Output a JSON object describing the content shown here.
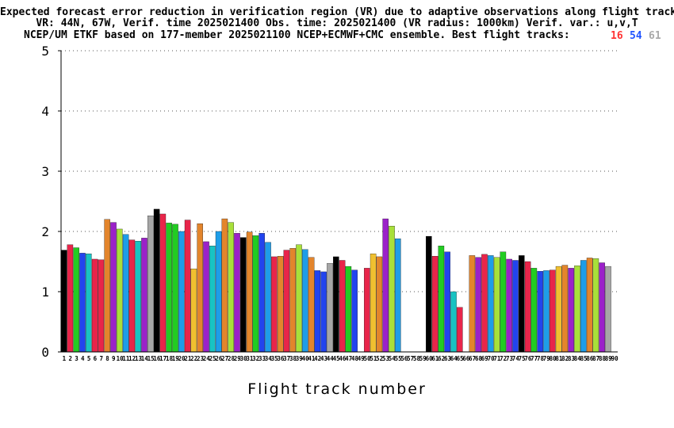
{
  "chart_data": {
    "type": "bar",
    "title_lines": [
      "Expected forecast error reduction in verification region (VR) due to adaptive observations along flight tracks.",
      "VR: 44N, 67W, Verif. time 2025021400 Obs. time: 2025021400 (VR radius: 1000km)  Verif. var.: u,v,T",
      "NCEP/UM ETKF based on 177-member 2025021100 NCEP+ECMWF+CMC ensemble. Best flight tracks:"
    ],
    "best_tracks": [
      {
        "label": "16",
        "color": "#ff3333"
      },
      {
        "label": "54",
        "color": "#2255ff"
      },
      {
        "label": "61",
        "color": "#aaaaaa"
      }
    ],
    "xlabel": "Flight track number",
    "ylabel": "",
    "ylim": [
      0,
      5
    ],
    "yticks": [
      "0",
      "1",
      "2",
      "3",
      "4",
      "5"
    ],
    "categories": [
      "1",
      "2",
      "3",
      "4",
      "5",
      "6",
      "7",
      "8",
      "9",
      "10",
      "11",
      "12",
      "13",
      "14",
      "15",
      "16",
      "17",
      "18",
      "19",
      "20",
      "21",
      "22",
      "23",
      "24",
      "25",
      "26",
      "27",
      "28",
      "29",
      "30",
      "31",
      "32",
      "33",
      "34",
      "35",
      "36",
      "37",
      "38",
      "39",
      "40",
      "41",
      "42",
      "43",
      "44",
      "45",
      "46",
      "47",
      "48",
      "49",
      "50",
      "51",
      "52",
      "53",
      "54",
      "55",
      "56",
      "57",
      "58",
      "59",
      "60",
      "61",
      "62",
      "63",
      "64",
      "65",
      "66",
      "67",
      "68",
      "69",
      "70",
      "71",
      "72",
      "73",
      "74",
      "75",
      "76",
      "77",
      "78",
      "79",
      "80",
      "81",
      "82",
      "83",
      "84",
      "85",
      "86",
      "87",
      "88",
      "89",
      "90"
    ],
    "values": [
      1.69,
      1.78,
      1.73,
      1.64,
      1.63,
      1.54,
      1.53,
      2.2,
      2.15,
      2.04,
      1.95,
      1.86,
      1.84,
      1.89,
      2.26,
      2.37,
      2.29,
      2.14,
      2.12,
      2.0,
      2.19,
      1.38,
      2.13,
      1.83,
      1.76,
      2.0,
      2.21,
      2.15,
      1.97,
      1.9,
      1.99,
      1.93,
      1.97,
      1.82,
      1.58,
      1.59,
      1.69,
      1.72,
      1.78,
      1.7,
      1.57,
      1.35,
      1.33,
      1.47,
      1.58,
      1.52,
      1.42,
      1.36,
      0,
      1.39,
      1.63,
      1.58,
      2.21,
      2.09,
      1.88,
      0,
      0,
      0,
      0,
      1.92,
      1.59,
      1.76,
      1.66,
      1.0,
      0.74,
      0,
      1.6,
      1.57,
      1.62,
      1.6,
      1.57,
      1.66,
      1.54,
      1.52,
      1.6,
      1.5,
      1.39,
      1.34,
      1.35,
      1.36,
      1.42,
      1.44,
      1.39,
      1.43,
      1.52,
      1.56,
      1.55,
      1.48,
      1.42,
      0
    ],
    "colors": [
      "#000000",
      "#e8254a",
      "#22cc22",
      "#2244ee",
      "#19c2c2",
      "#e8254a",
      "#e8254a",
      "#e3852c",
      "#9b21c9",
      "#a8e03a",
      "#1e9de8",
      "#e8254a",
      "#18c3c3",
      "#9b21c9",
      "#a6a6a6",
      "#000000",
      "#e8254a",
      "#22cc22",
      "#22cc22",
      "#1e9de8",
      "#e8254a",
      "#f0c030",
      "#e3852c",
      "#9b21c9",
      "#18c3c3",
      "#1e9de8",
      "#e3852c",
      "#a8e03a",
      "#9b21c9",
      "#000000",
      "#e3852c",
      "#22cc22",
      "#2244ee",
      "#1e9de8",
      "#e8254a",
      "#e3852c",
      "#e8254a",
      "#e3852c",
      "#a8e03a",
      "#1e9de8",
      "#e3852c",
      "#2244ee",
      "#2244ee",
      "#a6a6a6",
      "#000000",
      "#e8254a",
      "#22cc22",
      "#2244ee",
      "#ffffff",
      "#e8254a",
      "#f0c030",
      "#e3852c",
      "#9b21c9",
      "#a8e03a",
      "#1e9de8",
      "#ffffff",
      "#ffffff",
      "#ffffff",
      "#ffffff",
      "#000000",
      "#e8254a",
      "#22cc22",
      "#2244ee",
      "#18c3c3",
      "#e8254a",
      "#ffffff",
      "#e3852c",
      "#9b21c9",
      "#e8254a",
      "#1e9de8",
      "#a8e03a",
      "#22cc22",
      "#9b21c9",
      "#2244ee",
      "#000000",
      "#e8254a",
      "#22cc22",
      "#2244ee",
      "#1e9de8",
      "#e8254a",
      "#f0c030",
      "#e3852c",
      "#9b21c9",
      "#a8e03a",
      "#1e9de8",
      "#e3852c",
      "#a8e03a",
      "#9b21c9",
      "#a6a6a6",
      "#a6a6a6"
    ],
    "grid": true
  }
}
